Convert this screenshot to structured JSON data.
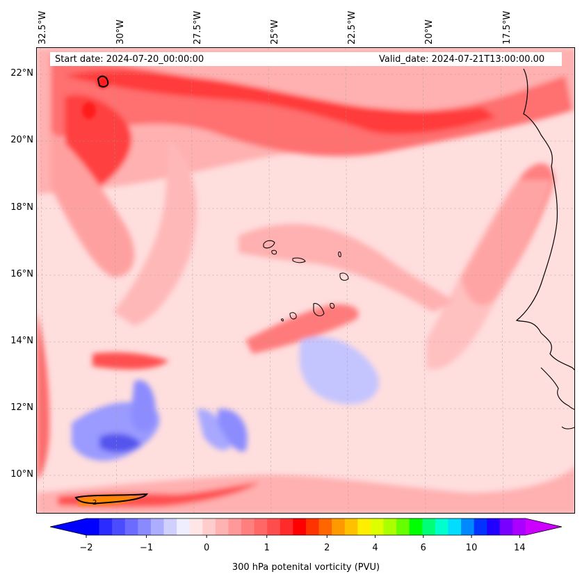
{
  "map": {
    "title_start": "Start date: 2024-07-20_00:00:00",
    "title_valid": "Valid_date: 2024-07-21T13:00:00.00",
    "lon_labels": [
      "32.5°W",
      "30°W",
      "27.5°W",
      "25°W",
      "22.5°W",
      "20°W",
      "17.5°W"
    ],
    "lat_labels": [
      "22°N",
      "20°N",
      "18°N",
      "16°N",
      "14°N",
      "12°N",
      "10°N"
    ],
    "contour_label": "2"
  },
  "colorbar": {
    "label": "300 hPa potenital vorticity (PVU)",
    "ticks": [
      "−2",
      "−1",
      "0",
      "1",
      "2",
      "4",
      "6",
      "10",
      "14"
    ],
    "colors": [
      "#0000ff",
      "#2b2bff",
      "#4c4cff",
      "#6b6bff",
      "#8a8aff",
      "#adadff",
      "#d0d0ff",
      "#eeeeff",
      "#ffe6e6",
      "#ffcccc",
      "#ffb2b2",
      "#ff9999",
      "#ff7f7f",
      "#ff6666",
      "#ff4c4c",
      "#ff2a2a",
      "#ff0000",
      "#ff3300",
      "#ff6600",
      "#ff9900",
      "#ffc000",
      "#ffee00",
      "#ddff00",
      "#aaff00",
      "#66ff00",
      "#00ff00",
      "#00ff77",
      "#00ffcc",
      "#00ddff",
      "#0088ff",
      "#0033ff",
      "#2200ff",
      "#7700ff",
      "#aa00ff"
    ],
    "under_color": "#0000ff",
    "over_color": "#cc00ff"
  }
}
